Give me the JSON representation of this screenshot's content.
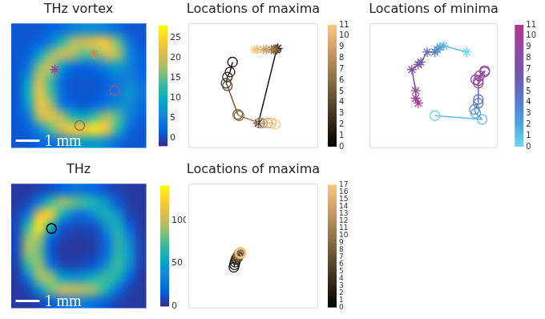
{
  "chart_data": [
    {
      "type": "heatmap",
      "title": "THz vortex",
      "scale_bar": "1 mm",
      "tick_labels": false,
      "xlim": [
        0,
        12
      ],
      "ylim": [
        0,
        10
      ],
      "cells": [
        [
          1,
          1,
          1,
          2,
          3,
          5,
          6,
          6,
          5,
          3,
          1,
          1
        ],
        [
          1,
          1,
          2,
          5,
          12,
          18,
          20,
          22,
          22,
          15,
          4,
          1
        ],
        [
          1,
          2,
          8,
          16,
          20,
          18,
          14,
          15,
          20,
          18,
          6,
          2
        ],
        [
          1,
          4,
          16,
          20,
          8,
          3,
          2,
          3,
          6,
          8,
          5,
          2
        ],
        [
          1,
          8,
          20,
          14,
          3,
          1,
          1,
          1,
          2,
          4,
          5,
          3
        ],
        [
          1,
          10,
          22,
          14,
          3,
          1,
          1,
          1,
          2,
          4,
          7,
          4
        ],
        [
          1,
          8,
          22,
          18,
          5,
          2,
          1,
          2,
          4,
          6,
          6,
          3
        ],
        [
          1,
          4,
          18,
          22,
          18,
          12,
          10,
          14,
          18,
          14,
          5,
          2
        ],
        [
          1,
          2,
          6,
          14,
          20,
          24,
          24,
          26,
          22,
          12,
          3,
          1
        ],
        [
          1,
          1,
          2,
          3,
          5,
          7,
          8,
          8,
          6,
          3,
          1,
          1
        ]
      ],
      "colorbar": {
        "range": [
          -2,
          28
        ],
        "ticks": [
          0,
          5,
          10,
          15,
          20,
          25
        ],
        "colors": [
          "#352a87",
          "#0363e1",
          "#1485d4",
          "#06a7c6",
          "#38b99e",
          "#92bf73",
          "#d9ba56",
          "#fcce2e",
          "#f9fb0e"
        ]
      },
      "markers": [
        {
          "x": 7.35,
          "y": 2.45,
          "marker": "star",
          "color": "#c88a5a"
        },
        {
          "x": 3.9,
          "y": 3.7,
          "marker": "star",
          "color": "#8c4a9a"
        },
        {
          "x": 9.2,
          "y": 5.4,
          "marker": "circle",
          "color": "#9a5590"
        },
        {
          "x": 6.1,
          "y": 8.2,
          "marker": "circle",
          "color": "#a06a4a"
        }
      ]
    },
    {
      "type": "line",
      "title": "Locations of maxima",
      "tick_labels": false,
      "xlim": [
        0,
        100
      ],
      "ylim": [
        0,
        100
      ],
      "series": [
        {
          "marker": "circle",
          "x": [
            34,
            32,
            30,
            29,
            30,
            38,
            39,
            55,
            57,
            61,
            64,
            67
          ],
          "y": [
            69,
            61,
            57,
            52,
            50,
            27,
            26,
            20,
            20,
            20,
            20,
            19
          ],
          "values": [
            0,
            1,
            2,
            3,
            4,
            5,
            6,
            7,
            8,
            9,
            10,
            11
          ]
        },
        {
          "marker": "star",
          "x": [
            54,
            68,
            69,
            68,
            68,
            67,
            66,
            64,
            60,
            58,
            53,
            51
          ],
          "y": [
            20,
            79,
            80,
            79,
            79,
            79,
            79,
            79,
            79,
            79,
            79,
            79
          ],
          "values": [
            0,
            1,
            2,
            3,
            4,
            5,
            6,
            7,
            8,
            9,
            10,
            11
          ]
        }
      ],
      "colorbar": {
        "range": [
          0,
          11
        ],
        "ticks": [
          0,
          1,
          2,
          3,
          4,
          5,
          6,
          7,
          8,
          9,
          10,
          11
        ],
        "colors": [
          "#000000",
          "#ffc77f"
        ]
      }
    },
    {
      "type": "line",
      "title": "Locations of minima",
      "tick_labels": false,
      "xlim": [
        0,
        100
      ],
      "ylim": [
        0,
        100
      ],
      "series": [
        {
          "marker": "circle",
          "x": [
            51,
            88,
            83,
            82,
            85,
            85,
            85,
            86,
            90,
            90,
            83,
            85
          ],
          "y": [
            26,
            23,
            28,
            31,
            36,
            39,
            52,
            58,
            62,
            61,
            55,
            54
          ],
          "values": [
            0,
            1,
            2,
            3,
            4,
            5,
            6,
            7,
            8,
            9,
            10,
            11
          ]
        },
        {
          "marker": "star",
          "x": [
            76,
            58,
            55,
            53,
            51,
            45,
            40,
            38,
            33,
            36,
            36,
            38
          ],
          "y": [
            77,
            82,
            81,
            79,
            77,
            77,
            69,
            67,
            63,
            46,
            40,
            36
          ],
          "values": [
            0,
            1,
            2,
            3,
            4,
            5,
            6,
            7,
            8,
            9,
            10,
            11
          ]
        }
      ],
      "colorbar": {
        "range": [
          0,
          11
        ],
        "ticks": [
          0,
          1,
          2,
          3,
          4,
          5,
          6,
          7,
          8,
          9,
          10,
          11
        ],
        "colors": [
          "#72d6ec",
          "#4fa0dc",
          "#5a78c4",
          "#7356a8",
          "#904a9e",
          "#b5358f"
        ]
      }
    },
    {
      "type": "heatmap",
      "title": "THz",
      "scale_bar": "1 mm",
      "tick_labels": false,
      "xlim": [
        0,
        12
      ],
      "ylim": [
        0,
        10
      ],
      "cells": [
        [
          5,
          5,
          8,
          12,
          20,
          25,
          25,
          20,
          12,
          8,
          5,
          5
        ],
        [
          5,
          10,
          30,
          70,
          90,
          80,
          70,
          60,
          40,
          15,
          6,
          5
        ],
        [
          8,
          30,
          110,
          120,
          60,
          30,
          25,
          40,
          60,
          40,
          10,
          5
        ],
        [
          10,
          70,
          130,
          60,
          15,
          10,
          10,
          12,
          40,
          60,
          20,
          5
        ],
        [
          10,
          90,
          90,
          20,
          8,
          5,
          5,
          8,
          25,
          65,
          35,
          8
        ],
        [
          10,
          90,
          80,
          15,
          5,
          5,
          5,
          8,
          25,
          65,
          45,
          8
        ],
        [
          8,
          70,
          90,
          30,
          10,
          8,
          10,
          15,
          40,
          70,
          40,
          8
        ],
        [
          5,
          30,
          90,
          90,
          50,
          40,
          45,
          60,
          70,
          60,
          20,
          5
        ],
        [
          5,
          10,
          40,
          80,
          100,
          100,
          95,
          85,
          60,
          25,
          8,
          5
        ],
        [
          5,
          5,
          8,
          15,
          25,
          30,
          30,
          25,
          15,
          8,
          5,
          5
        ]
      ],
      "colorbar": {
        "range": [
          0,
          140
        ],
        "ticks": [
          0,
          50,
          100
        ],
        "colors": [
          "#352a87",
          "#0363e1",
          "#1485d4",
          "#06a7c6",
          "#38b99e",
          "#92bf73",
          "#d9ba56",
          "#fcce2e",
          "#f9fb0e"
        ]
      },
      "markers": [
        {
          "x": 3.6,
          "y": 3.6,
          "marker": "circle",
          "color": "#000000"
        }
      ]
    },
    {
      "type": "line",
      "title": "Locations of maxima",
      "tick_labels": false,
      "xlim": [
        0,
        100
      ],
      "ylim": [
        0,
        100
      ],
      "series": [
        {
          "marker": "circle",
          "x": [
            35,
            35.5,
            36,
            36.5,
            37,
            38,
            38,
            38.5,
            39,
            39,
            39.5,
            40,
            40,
            40,
            39.5,
            40.5,
            40,
            40.5
          ],
          "y": [
            33,
            35,
            37,
            39,
            40,
            41,
            42,
            42,
            43,
            43.5,
            44,
            44,
            44.5,
            44,
            44,
            44,
            45,
            44.5
          ],
          "values": [
            0,
            1,
            2,
            3,
            4,
            5,
            6,
            7,
            8,
            9,
            10,
            11,
            12,
            13,
            14,
            15,
            16,
            17
          ]
        }
      ],
      "colorbar": {
        "range": [
          0,
          17
        ],
        "ticks": [
          0,
          1,
          2,
          3,
          4,
          5,
          6,
          7,
          8,
          9,
          10,
          11,
          12,
          13,
          14,
          15,
          16,
          17
        ],
        "colors": [
          "#000000",
          "#ffc77f"
        ]
      }
    }
  ]
}
